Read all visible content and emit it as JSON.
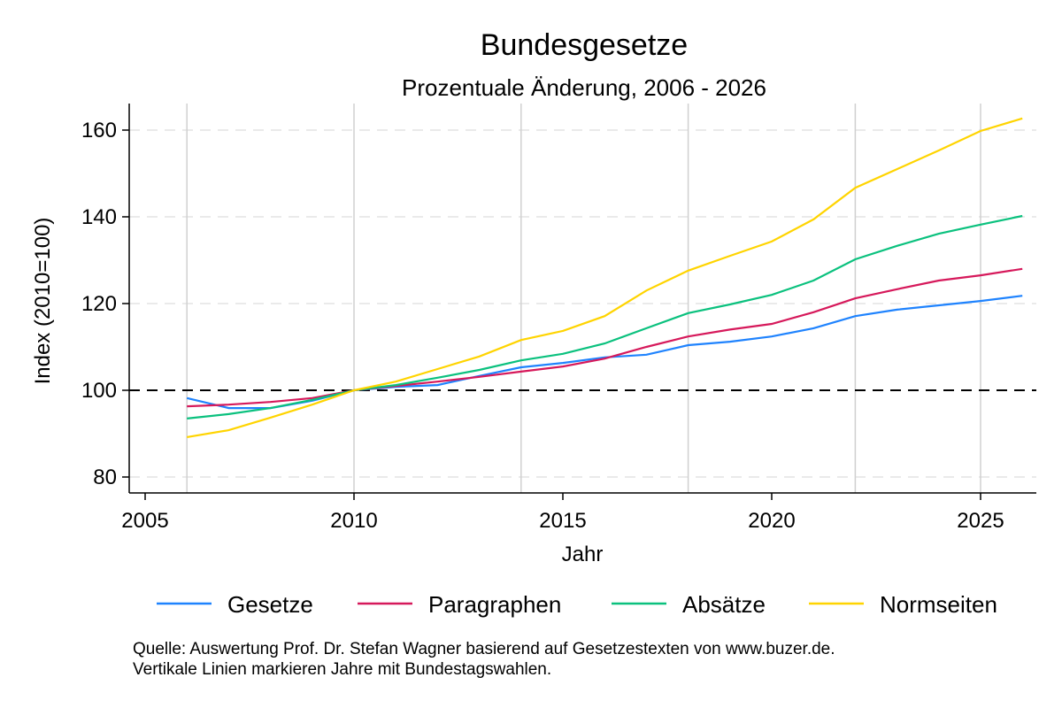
{
  "chart_data": {
    "type": "line",
    "title": "Bundesgesetze",
    "subtitle": "Prozentuale Änderung, 2006 - 2026",
    "xlabel": "Jahr",
    "ylabel": "Index (2010=100)",
    "xlim": [
      2005,
      2026.5
    ],
    "ylim": [
      76.5,
      166.5
    ],
    "xticks": [
      2005,
      2010,
      2015,
      2020,
      2025
    ],
    "yticks": [
      80,
      100,
      120,
      140,
      160
    ],
    "reference_line": 100,
    "vertical_lines": [
      2006,
      2010,
      2014,
      2018,
      2022,
      2025
    ],
    "grid": "horizontal dashed",
    "legend_position": "bottom",
    "x": [
      2006,
      2007,
      2008,
      2009,
      2010,
      2011,
      2012,
      2013,
      2014,
      2015,
      2016,
      2017,
      2018,
      2019,
      2020,
      2021,
      2022,
      2023,
      2024,
      2025,
      2026
    ],
    "series": [
      {
        "name": "Gesetze",
        "color": "#1f83fe",
        "values": [
          98.2,
          95.9,
          95.9,
          97.6,
          100,
          100.8,
          101.2,
          103.3,
          105.3,
          106.3,
          107.6,
          108.2,
          110.4,
          111.2,
          112.4,
          114.3,
          117.1,
          118.6,
          119.6,
          120.6,
          121.8
        ]
      },
      {
        "name": "Paragraphen",
        "color": "#d6195b",
        "values": [
          96.3,
          96.7,
          97.3,
          98.2,
          100,
          101.0,
          102.0,
          103.1,
          104.3,
          105.5,
          107.3,
          110.0,
          112.4,
          114.0,
          115.3,
          118.0,
          121.2,
          123.3,
          125.3,
          126.5,
          128.0
        ]
      },
      {
        "name": "Absätze",
        "color": "#0bc17e",
        "values": [
          93.5,
          94.5,
          95.9,
          97.8,
          100,
          101.2,
          102.9,
          104.7,
          106.9,
          108.4,
          110.8,
          114.3,
          117.8,
          119.8,
          122.0,
          125.3,
          130.2,
          133.3,
          136.1,
          138.2,
          140.2
        ]
      },
      {
        "name": "Normseiten",
        "color": "#ffd400",
        "values": [
          89.2,
          90.8,
          93.7,
          96.7,
          100,
          102.0,
          104.9,
          107.8,
          111.6,
          113.7,
          117.1,
          123.0,
          127.6,
          131.0,
          134.3,
          139.4,
          146.7,
          151.0,
          155.3,
          159.8,
          162.7
        ]
      }
    ],
    "notes": [
      "Quelle: Auswertung Prof. Dr. Stefan Wagner basierend auf Gesetzestexten von www.buzer.de.",
      "Vertikale Linien markieren Jahre mit Bundestagswahlen."
    ]
  }
}
